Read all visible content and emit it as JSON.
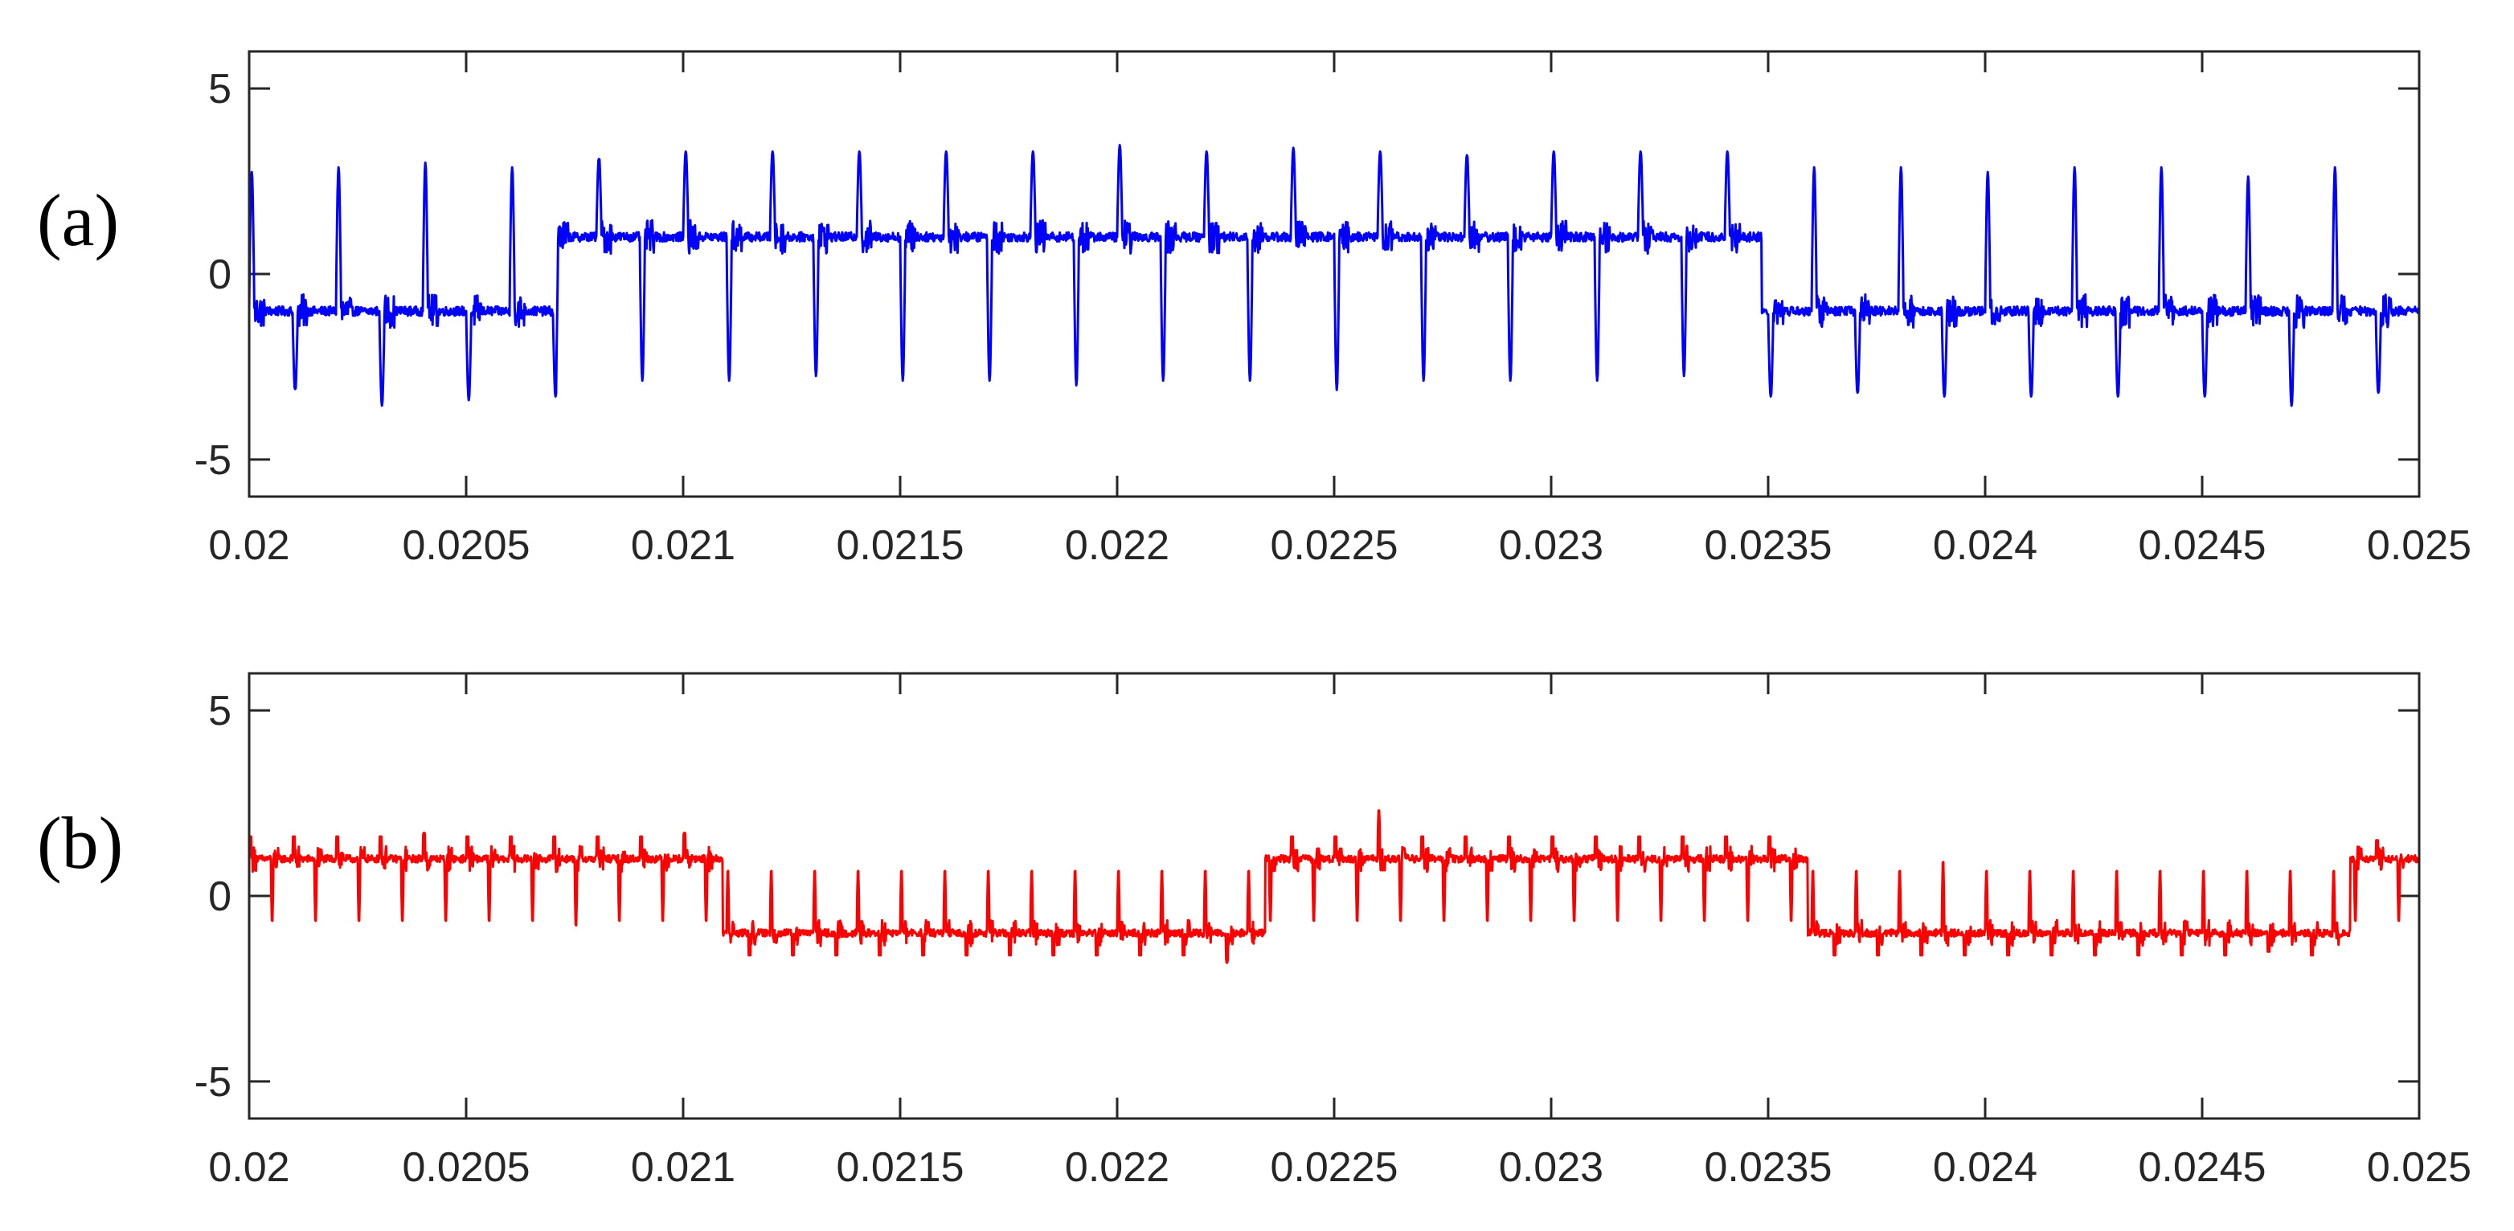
{
  "chart_data": [
    {
      "type": "line",
      "panel_label": "(a)",
      "title": "",
      "xlabel": "",
      "ylabel": "",
      "xlim": [
        0.02,
        0.025
      ],
      "ylim": [
        -6,
        6
      ],
      "xticks": [
        0.02,
        0.0205,
        0.021,
        0.0215,
        0.022,
        0.0225,
        0.023,
        0.0235,
        0.024,
        0.0245,
        0.025
      ],
      "xtick_labels": [
        "0.02",
        "0.0205",
        "0.021",
        "0.0215",
        "0.022",
        "0.0225",
        "0.023",
        "0.0235",
        "0.024",
        "0.0245",
        "0.025"
      ],
      "yticks": [
        -5,
        0,
        5
      ],
      "ytick_labels": [
        "-5",
        "0",
        "5"
      ],
      "grid": false,
      "series": [
        {
          "color": "#0000ff",
          "pulse_count": 50,
          "peak_amplitude": 3.3,
          "level": 1.0,
          "description_values": {
            "x_start": 0.02,
            "x_end": 0.025
          },
          "peaks": [
            {
              "x": 0.02005,
              "y": -3.2
            },
            {
              "x": 0.0201,
              "y": 3.1
            },
            {
              "x": 0.0202,
              "y": -3.3
            },
            {
              "x": 0.02025,
              "y": 3.0
            },
            {
              "x": 0.02035,
              "y": 3.6
            },
            {
              "x": 0.02045,
              "y": 3.4
            },
            {
              "x": 0.02055,
              "y": -3.4
            },
            {
              "x": 0.02065,
              "y": 3.3
            },
            {
              "x": 0.0208,
              "y": 3.1
            },
            {
              "x": 0.02095,
              "y": -3.3
            },
            {
              "x": 0.02115,
              "y": 3.3
            },
            {
              "x": 0.02135,
              "y": 3.2
            },
            {
              "x": 0.0215,
              "y": -3.3
            },
            {
              "x": 0.02175,
              "y": 3.3
            },
            {
              "x": 0.0219,
              "y": 3.4
            },
            {
              "x": 0.022,
              "y": -3.5
            },
            {
              "x": 0.02225,
              "y": 3.3
            },
            {
              "x": 0.0224,
              "y": 3.4
            },
            {
              "x": 0.02255,
              "y": 3.5
            },
            {
              "x": 0.02265,
              "y": -3.3
            },
            {
              "x": 0.0228,
              "y": 3.2
            },
            {
              "x": 0.023,
              "y": -3.3
            },
            {
              "x": 0.0233,
              "y": 3.2
            },
            {
              "x": 0.02355,
              "y": 3.3
            },
            {
              "x": 0.0237,
              "y": -3.2
            },
            {
              "x": 0.024,
              "y": 3.2
            },
            {
              "x": 0.0242,
              "y": 3.3
            },
            {
              "x": 0.0244,
              "y": 3.3
            },
            {
              "x": 0.0246,
              "y": 3.1
            },
            {
              "x": 0.02475,
              "y": -3.6
            },
            {
              "x": 0.0249,
              "y": 3.2
            },
            {
              "x": 0.025,
              "y": -3.5
            }
          ]
        }
      ]
    },
    {
      "type": "line",
      "panel_label": "(b)",
      "title": "",
      "xlabel": "",
      "ylabel": "",
      "xlim": [
        0.02,
        0.025
      ],
      "ylim": [
        -6,
        6
      ],
      "xticks": [
        0.02,
        0.0205,
        0.021,
        0.0215,
        0.022,
        0.0225,
        0.023,
        0.0235,
        0.024,
        0.0245,
        0.025
      ],
      "xtick_labels": [
        "0.02",
        "0.0205",
        "0.021",
        "0.0215",
        "0.022",
        "0.0225",
        "0.023",
        "0.0235",
        "0.024",
        "0.0245",
        "0.025"
      ],
      "yticks": [
        -5,
        0,
        5
      ],
      "ytick_labels": [
        "-5",
        "0",
        "5"
      ],
      "grid": false,
      "series": [
        {
          "color": "#ff0000",
          "pulse_count": 100,
          "peak_amplitude": 1.6,
          "level": 1.0,
          "peaks": [
            {
              "x": 0.0204,
              "y": 1.7
            },
            {
              "x": 0.02075,
              "y": 1.7
            },
            {
              "x": 0.021,
              "y": -1.7
            },
            {
              "x": 0.02165,
              "y": 1.6
            },
            {
              "x": 0.02225,
              "y": -1.8
            },
            {
              "x": 0.02258,
              "y": 2.3
            },
            {
              "x": 0.0239,
              "y": 1.8
            },
            {
              "x": 0.02465,
              "y": 1.5
            },
            {
              "x": 0.0249,
              "y": -1.5
            }
          ]
        }
      ]
    }
  ]
}
